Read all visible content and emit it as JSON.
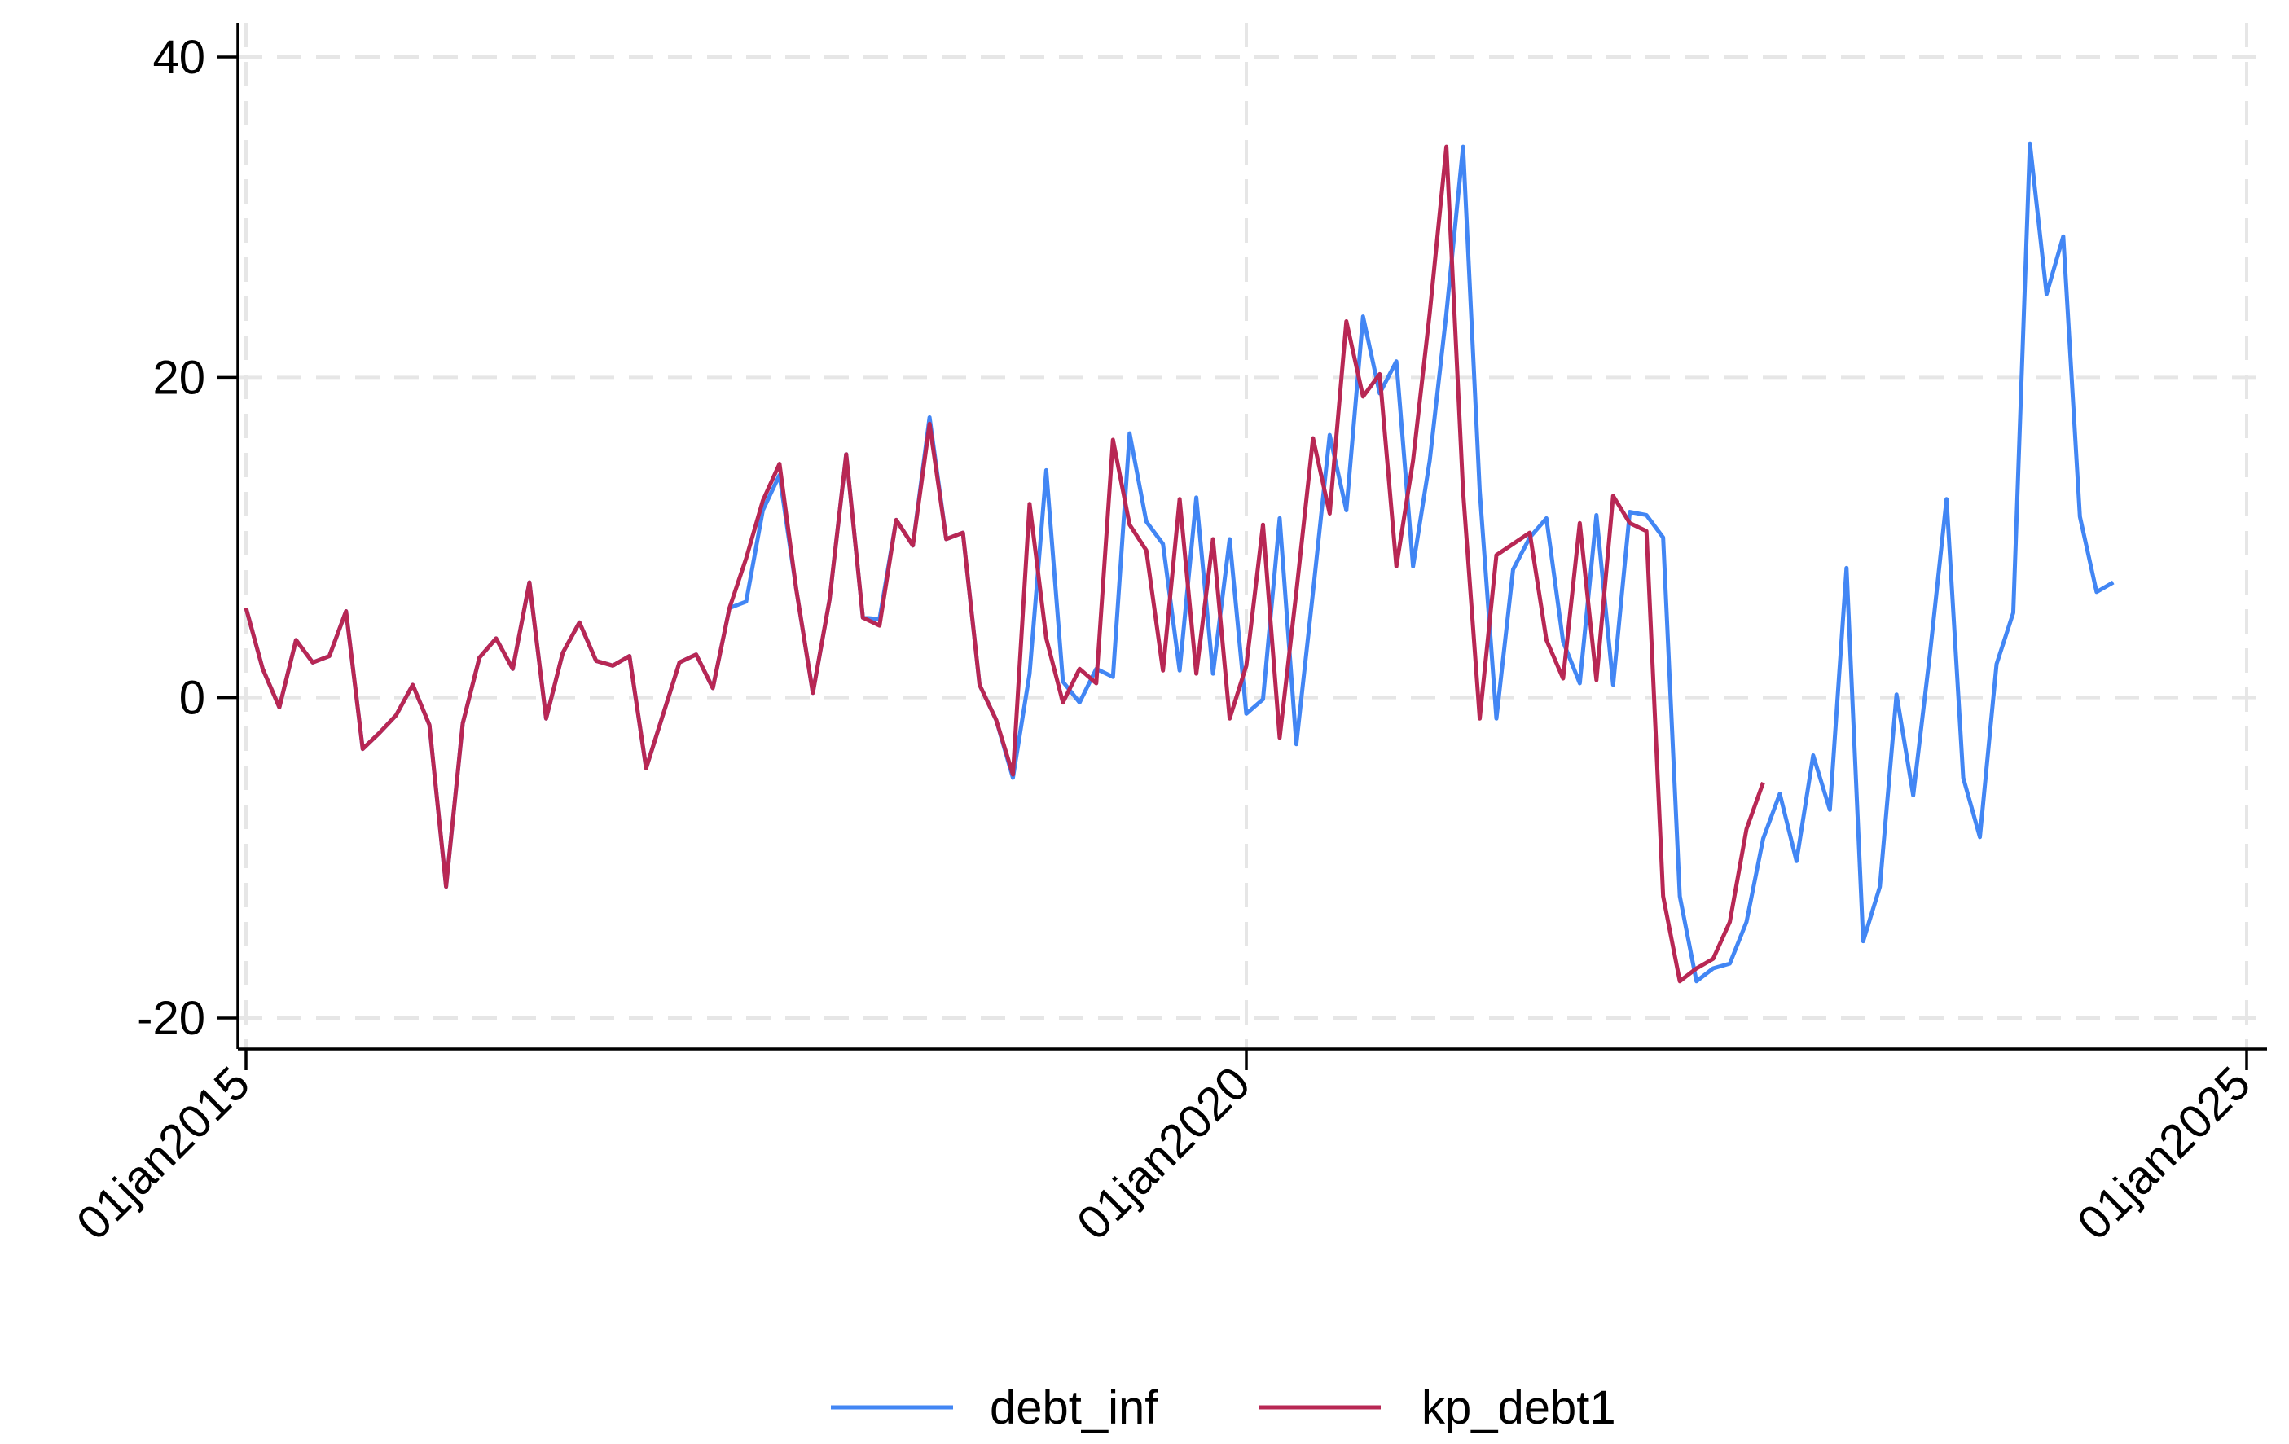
{
  "chart_data": {
    "type": "line",
    "title": "",
    "xlabel": "",
    "ylabel": "",
    "x_axis": {
      "kind": "date",
      "range": [
        "2015-01",
        "2025-01"
      ],
      "ticks": [
        {
          "value": "2015-01",
          "label": "01jan2015"
        },
        {
          "value": "2020-01",
          "label": "01jan2020"
        },
        {
          "value": "2025-01",
          "label": "01jan2025"
        }
      ]
    },
    "y_axis": {
      "range": [
        -20,
        40
      ],
      "ticks": [
        {
          "value": -20,
          "label": "-20"
        },
        {
          "value": 0,
          "label": "0"
        },
        {
          "value": 20,
          "label": "20"
        },
        {
          "value": 40,
          "label": "40"
        }
      ]
    },
    "grid": true,
    "legend": {
      "position": "bottom"
    },
    "series": [
      {
        "name": "debt_inf",
        "color": "#4286f4",
        "points": [
          [
            "2015-01",
            5.6
          ],
          [
            "2015-02",
            1.8
          ],
          [
            "2015-03",
            -0.6
          ],
          [
            "2015-04",
            3.6
          ],
          [
            "2015-05",
            2.2
          ],
          [
            "2015-06",
            2.6
          ],
          [
            "2015-07",
            5.4
          ],
          [
            "2015-08",
            -3.2
          ],
          [
            "2015-09",
            -2.2
          ],
          [
            "2015-10",
            -1.1
          ],
          [
            "2015-11",
            0.8
          ],
          [
            "2015-12",
            -1.7
          ],
          [
            "2016-01",
            -11.8
          ],
          [
            "2016-02",
            -1.6
          ],
          [
            "2016-03",
            2.5
          ],
          [
            "2016-04",
            3.7
          ],
          [
            "2016-05",
            1.8
          ],
          [
            "2016-06",
            7.2
          ],
          [
            "2016-07",
            -1.3
          ],
          [
            "2016-08",
            2.8
          ],
          [
            "2016-09",
            4.7
          ],
          [
            "2016-10",
            2.3
          ],
          [
            "2016-11",
            2.0
          ],
          [
            "2016-12",
            2.6
          ],
          [
            "2017-01",
            -4.4
          ],
          [
            "2017-02",
            -1.1
          ],
          [
            "2017-03",
            2.2
          ],
          [
            "2017-04",
            2.7
          ],
          [
            "2017-05",
            0.6
          ],
          [
            "2017-06",
            5.6
          ],
          [
            "2017-07",
            6.0
          ],
          [
            "2017-08",
            11.7
          ],
          [
            "2017-09",
            13.9
          ],
          [
            "2017-10",
            6.8
          ],
          [
            "2017-11",
            0.3
          ],
          [
            "2017-12",
            6.1
          ],
          [
            "2018-01",
            15.2
          ],
          [
            "2018-02",
            5.0
          ],
          [
            "2018-03",
            4.9
          ],
          [
            "2018-04",
            11.1
          ],
          [
            "2018-05",
            9.5
          ],
          [
            "2018-06",
            17.5
          ],
          [
            "2018-07",
            9.9
          ],
          [
            "2018-08",
            10.3
          ],
          [
            "2018-09",
            0.8
          ],
          [
            "2018-10",
            -1.4
          ],
          [
            "2018-11",
            -5.0
          ],
          [
            "2018-12",
            1.5
          ],
          [
            "2019-01",
            14.2
          ],
          [
            "2019-02",
            1.0
          ],
          [
            "2019-03",
            -0.3
          ],
          [
            "2019-04",
            1.8
          ],
          [
            "2019-05",
            1.3
          ],
          [
            "2019-06",
            16.5
          ],
          [
            "2019-07",
            11.0
          ],
          [
            "2019-08",
            9.6
          ],
          [
            "2019-09",
            1.7
          ],
          [
            "2019-10",
            12.5
          ],
          [
            "2019-11",
            1.5
          ],
          [
            "2019-12",
            9.9
          ],
          [
            "2020-01",
            -1.0
          ],
          [
            "2020-02",
            -0.1
          ],
          [
            "2020-03",
            11.2
          ],
          [
            "2020-04",
            -2.9
          ],
          [
            "2020-05",
            6.6
          ],
          [
            "2020-06",
            16.4
          ],
          [
            "2020-07",
            11.7
          ],
          [
            "2020-08",
            23.8
          ],
          [
            "2020-09",
            19.0
          ],
          [
            "2020-10",
            21.0
          ],
          [
            "2020-11",
            8.2
          ],
          [
            "2020-12",
            14.8
          ],
          [
            "2021-01",
            24.0
          ],
          [
            "2021-02",
            34.4
          ],
          [
            "2021-03",
            12.9
          ],
          [
            "2021-04",
            -1.3
          ],
          [
            "2021-05",
            8.0
          ],
          [
            "2021-06",
            10.0
          ],
          [
            "2021-07",
            11.2
          ],
          [
            "2021-08",
            3.5
          ],
          [
            "2021-09",
            0.9
          ],
          [
            "2021-10",
            11.4
          ],
          [
            "2021-11",
            0.8
          ],
          [
            "2021-12",
            11.6
          ],
          [
            "2022-01",
            11.4
          ],
          [
            "2022-02",
            10.0
          ],
          [
            "2022-03",
            -12.4
          ],
          [
            "2022-04",
            -17.7
          ],
          [
            "2022-05",
            -16.9
          ],
          [
            "2022-06",
            -16.6
          ],
          [
            "2022-07",
            -14.0
          ],
          [
            "2022-08",
            -8.8
          ],
          [
            "2022-09",
            -6.0
          ],
          [
            "2022-10",
            -10.2
          ],
          [
            "2022-11",
            -3.6
          ],
          [
            "2022-12",
            -7.0
          ],
          [
            "2023-01",
            8.1
          ],
          [
            "2023-02",
            -15.2
          ],
          [
            "2023-03",
            -11.8
          ],
          [
            "2023-04",
            0.2
          ],
          [
            "2023-05",
            -6.1
          ],
          [
            "2023-06",
            2.7
          ],
          [
            "2023-07",
            12.4
          ],
          [
            "2023-08",
            -5.0
          ],
          [
            "2023-09",
            -8.7
          ],
          [
            "2023-10",
            2.1
          ],
          [
            "2023-11",
            5.3
          ],
          [
            "2023-12",
            34.6
          ],
          [
            "2024-01",
            25.2
          ],
          [
            "2024-02",
            28.8
          ],
          [
            "2024-03",
            11.3
          ],
          [
            "2024-04",
            6.6
          ],
          [
            "2024-05",
            7.2
          ]
        ]
      },
      {
        "name": "kp_debt1",
        "color": "#b82754",
        "points": [
          [
            "2015-01",
            5.6
          ],
          [
            "2015-02",
            1.8
          ],
          [
            "2015-03",
            -0.6
          ],
          [
            "2015-04",
            3.6
          ],
          [
            "2015-05",
            2.2
          ],
          [
            "2015-06",
            2.6
          ],
          [
            "2015-07",
            5.4
          ],
          [
            "2015-08",
            -3.2
          ],
          [
            "2015-09",
            -2.2
          ],
          [
            "2015-10",
            -1.1
          ],
          [
            "2015-11",
            0.8
          ],
          [
            "2015-12",
            -1.7
          ],
          [
            "2016-01",
            -11.8
          ],
          [
            "2016-02",
            -1.6
          ],
          [
            "2016-03",
            2.5
          ],
          [
            "2016-04",
            3.7
          ],
          [
            "2016-05",
            1.8
          ],
          [
            "2016-06",
            7.2
          ],
          [
            "2016-07",
            -1.3
          ],
          [
            "2016-08",
            2.8
          ],
          [
            "2016-09",
            4.7
          ],
          [
            "2016-10",
            2.3
          ],
          [
            "2016-11",
            2.0
          ],
          [
            "2016-12",
            2.6
          ],
          [
            "2017-01",
            -4.4
          ],
          [
            "2017-02",
            -1.1
          ],
          [
            "2017-03",
            2.2
          ],
          [
            "2017-04",
            2.7
          ],
          [
            "2017-05",
            0.6
          ],
          [
            "2017-06",
            5.6
          ],
          [
            "2017-07",
            8.7
          ],
          [
            "2017-08",
            12.3
          ],
          [
            "2017-09",
            14.6
          ],
          [
            "2017-10",
            6.8
          ],
          [
            "2017-11",
            0.3
          ],
          [
            "2017-12",
            6.1
          ],
          [
            "2018-01",
            15.2
          ],
          [
            "2018-02",
            5.0
          ],
          [
            "2018-03",
            4.5
          ],
          [
            "2018-04",
            11.1
          ],
          [
            "2018-05",
            9.5
          ],
          [
            "2018-06",
            17.1
          ],
          [
            "2018-07",
            9.9
          ],
          [
            "2018-08",
            10.3
          ],
          [
            "2018-09",
            0.8
          ],
          [
            "2018-10",
            -1.4
          ],
          [
            "2018-11",
            -4.8
          ],
          [
            "2018-12",
            12.1
          ],
          [
            "2019-01",
            3.7
          ],
          [
            "2019-02",
            -0.3
          ],
          [
            "2019-03",
            1.8
          ],
          [
            "2019-04",
            0.9
          ],
          [
            "2019-05",
            16.1
          ],
          [
            "2019-06",
            10.8
          ],
          [
            "2019-07",
            9.2
          ],
          [
            "2019-08",
            1.7
          ],
          [
            "2019-09",
            12.4
          ],
          [
            "2019-10",
            1.5
          ],
          [
            "2019-11",
            9.9
          ],
          [
            "2019-12",
            -1.3
          ],
          [
            "2020-01",
            2.0
          ],
          [
            "2020-02",
            10.8
          ],
          [
            "2020-03",
            -2.5
          ],
          [
            "2020-04",
            6.6
          ],
          [
            "2020-05",
            16.2
          ],
          [
            "2020-06",
            11.5
          ],
          [
            "2020-07",
            23.5
          ],
          [
            "2020-08",
            18.8
          ],
          [
            "2020-09",
            20.2
          ],
          [
            "2020-10",
            8.2
          ],
          [
            "2020-11",
            14.8
          ],
          [
            "2020-12",
            24.0
          ],
          [
            "2021-01",
            34.4
          ],
          [
            "2021-02",
            12.9
          ],
          [
            "2021-03",
            -1.3
          ],
          [
            "2021-04",
            8.9
          ],
          [
            "2021-05",
            9.6
          ],
          [
            "2021-06",
            10.3
          ],
          [
            "2021-07",
            3.6
          ],
          [
            "2021-08",
            1.2
          ],
          [
            "2021-09",
            10.9
          ],
          [
            "2021-10",
            1.1
          ],
          [
            "2021-11",
            12.6
          ],
          [
            "2021-12",
            10.9
          ],
          [
            "2022-01",
            10.4
          ],
          [
            "2022-02",
            -12.4
          ],
          [
            "2022-03",
            -17.7
          ],
          [
            "2022-04",
            -16.9
          ],
          [
            "2022-05",
            -16.3
          ],
          [
            "2022-06",
            -14.0
          ],
          [
            "2022-07",
            -8.2
          ],
          [
            "2022-08",
            -5.3
          ]
        ]
      }
    ]
  }
}
